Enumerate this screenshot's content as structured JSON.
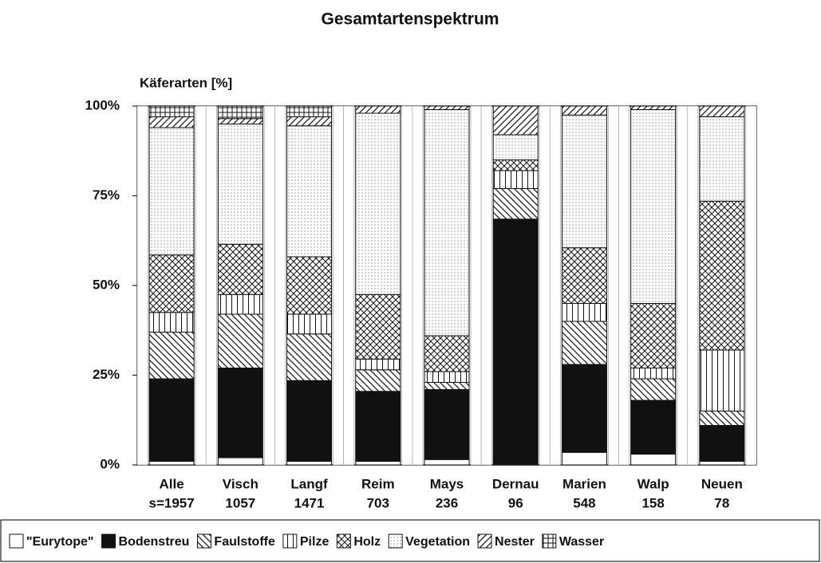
{
  "chart_data": {
    "type": "stacked_bar",
    "title": "Gesamtartenspektrum",
    "y_label": "Käferarten [%]",
    "categories": [
      "Alle",
      "Visch",
      "Langf",
      "Reim",
      "Mays",
      "Dernau",
      "Marien",
      "Walp",
      "Neuen"
    ],
    "sample_labels": [
      "s=1957",
      "1057",
      "1471",
      "703",
      "236",
      "96",
      "548",
      "158",
      "78"
    ],
    "ylim": [
      0,
      100
    ],
    "yticks": [
      {
        "value": 0,
        "label": "0%"
      },
      {
        "value": 25,
        "label": "25%"
      },
      {
        "value": 50,
        "label": "50%"
      },
      {
        "value": 75,
        "label": "75%"
      },
      {
        "value": 100,
        "label": "100%"
      }
    ],
    "series": [
      {
        "name": "\"Eurytope\"",
        "pattern": "white",
        "values": [
          1,
          2,
          1,
          1,
          1.5,
          0,
          3.5,
          3,
          1
        ]
      },
      {
        "name": "Bodenstreu",
        "pattern": "solid",
        "values": [
          23,
          25,
          22.5,
          19.5,
          19.5,
          68.5,
          24.5,
          15,
          10
        ]
      },
      {
        "name": "Faulstoffe",
        "pattern": "diag-down",
        "values": [
          13,
          15,
          13,
          6,
          2,
          8.5,
          12,
          6,
          4
        ]
      },
      {
        "name": "Pilze",
        "pattern": "vertical",
        "values": [
          5.5,
          5.5,
          5.5,
          3,
          3,
          5,
          5,
          3,
          17
        ]
      },
      {
        "name": "Holz",
        "pattern": "cross",
        "values": [
          16,
          14,
          16,
          18,
          10,
          3,
          15.5,
          18,
          41.5
        ]
      },
      {
        "name": "Vegetation",
        "pattern": "dots",
        "values": [
          35.5,
          33.5,
          36.5,
          50.5,
          63,
          7,
          37,
          54,
          23.5
        ]
      },
      {
        "name": "Nester",
        "pattern": "diag-up",
        "values": [
          3,
          1.5,
          2.5,
          2,
          1,
          8,
          2.5,
          1,
          3
        ]
      },
      {
        "name": "Wasser",
        "pattern": "grid",
        "values": [
          3,
          3.5,
          3,
          0,
          0,
          0,
          0,
          0,
          0
        ]
      }
    ]
  }
}
